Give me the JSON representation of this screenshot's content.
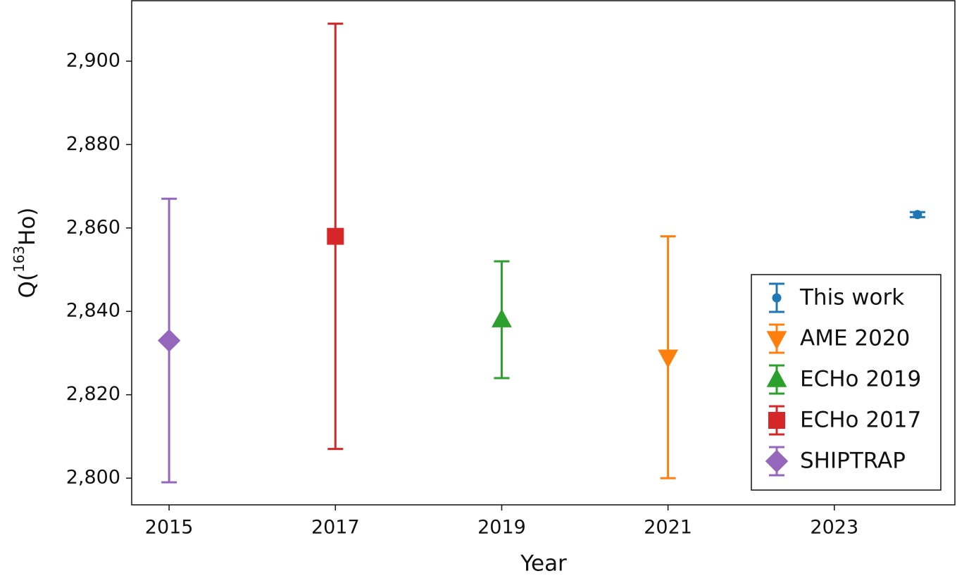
{
  "chart_data": {
    "type": "errorbar",
    "xlabel": "Year",
    "ylabel": {
      "text": "Q(",
      "superscript": "163",
      "rest": "Ho)"
    },
    "xlim": [
      2014.55,
      2024.45
    ],
    "xticks": [
      2015,
      2017,
      2019,
      2021,
      2023
    ],
    "ylim": [
      2793.6,
      2914.5
    ],
    "yticks": [
      {
        "value": 2800,
        "label": "2,800"
      },
      {
        "value": 2820,
        "label": "2,820"
      },
      {
        "value": 2840,
        "label": "2,840"
      },
      {
        "value": 2860,
        "label": "2,860"
      },
      {
        "value": 2880,
        "label": "2,880"
      },
      {
        "value": 2900,
        "label": "2,900"
      }
    ],
    "grid": false,
    "legend": "lower right",
    "series": [
      {
        "name": "This work",
        "color": "#1f77b4",
        "marker": "circle",
        "x": [
          2024
        ],
        "values": [
          2863.2
        ],
        "errors": [
          0.6
        ]
      },
      {
        "name": "AME 2020",
        "color": "#ff7f0e",
        "marker": "triangle-down",
        "x": [
          2021
        ],
        "values": [
          2829
        ],
        "errors": [
          29
        ]
      },
      {
        "name": "ECHo 2019",
        "color": "#2ca02c",
        "marker": "triangle-up",
        "x": [
          2019
        ],
        "values": [
          2838
        ],
        "errors": [
          14
        ]
      },
      {
        "name": "ECHo 2017",
        "color": "#d62728",
        "marker": "square",
        "x": [
          2017
        ],
        "values": [
          2858
        ],
        "errors": [
          51
        ]
      },
      {
        "name": "SHIPTRAP",
        "color": "#9467bd",
        "marker": "diamond",
        "x": [
          2015
        ],
        "values": [
          2833
        ],
        "errors": [
          34
        ]
      }
    ]
  }
}
